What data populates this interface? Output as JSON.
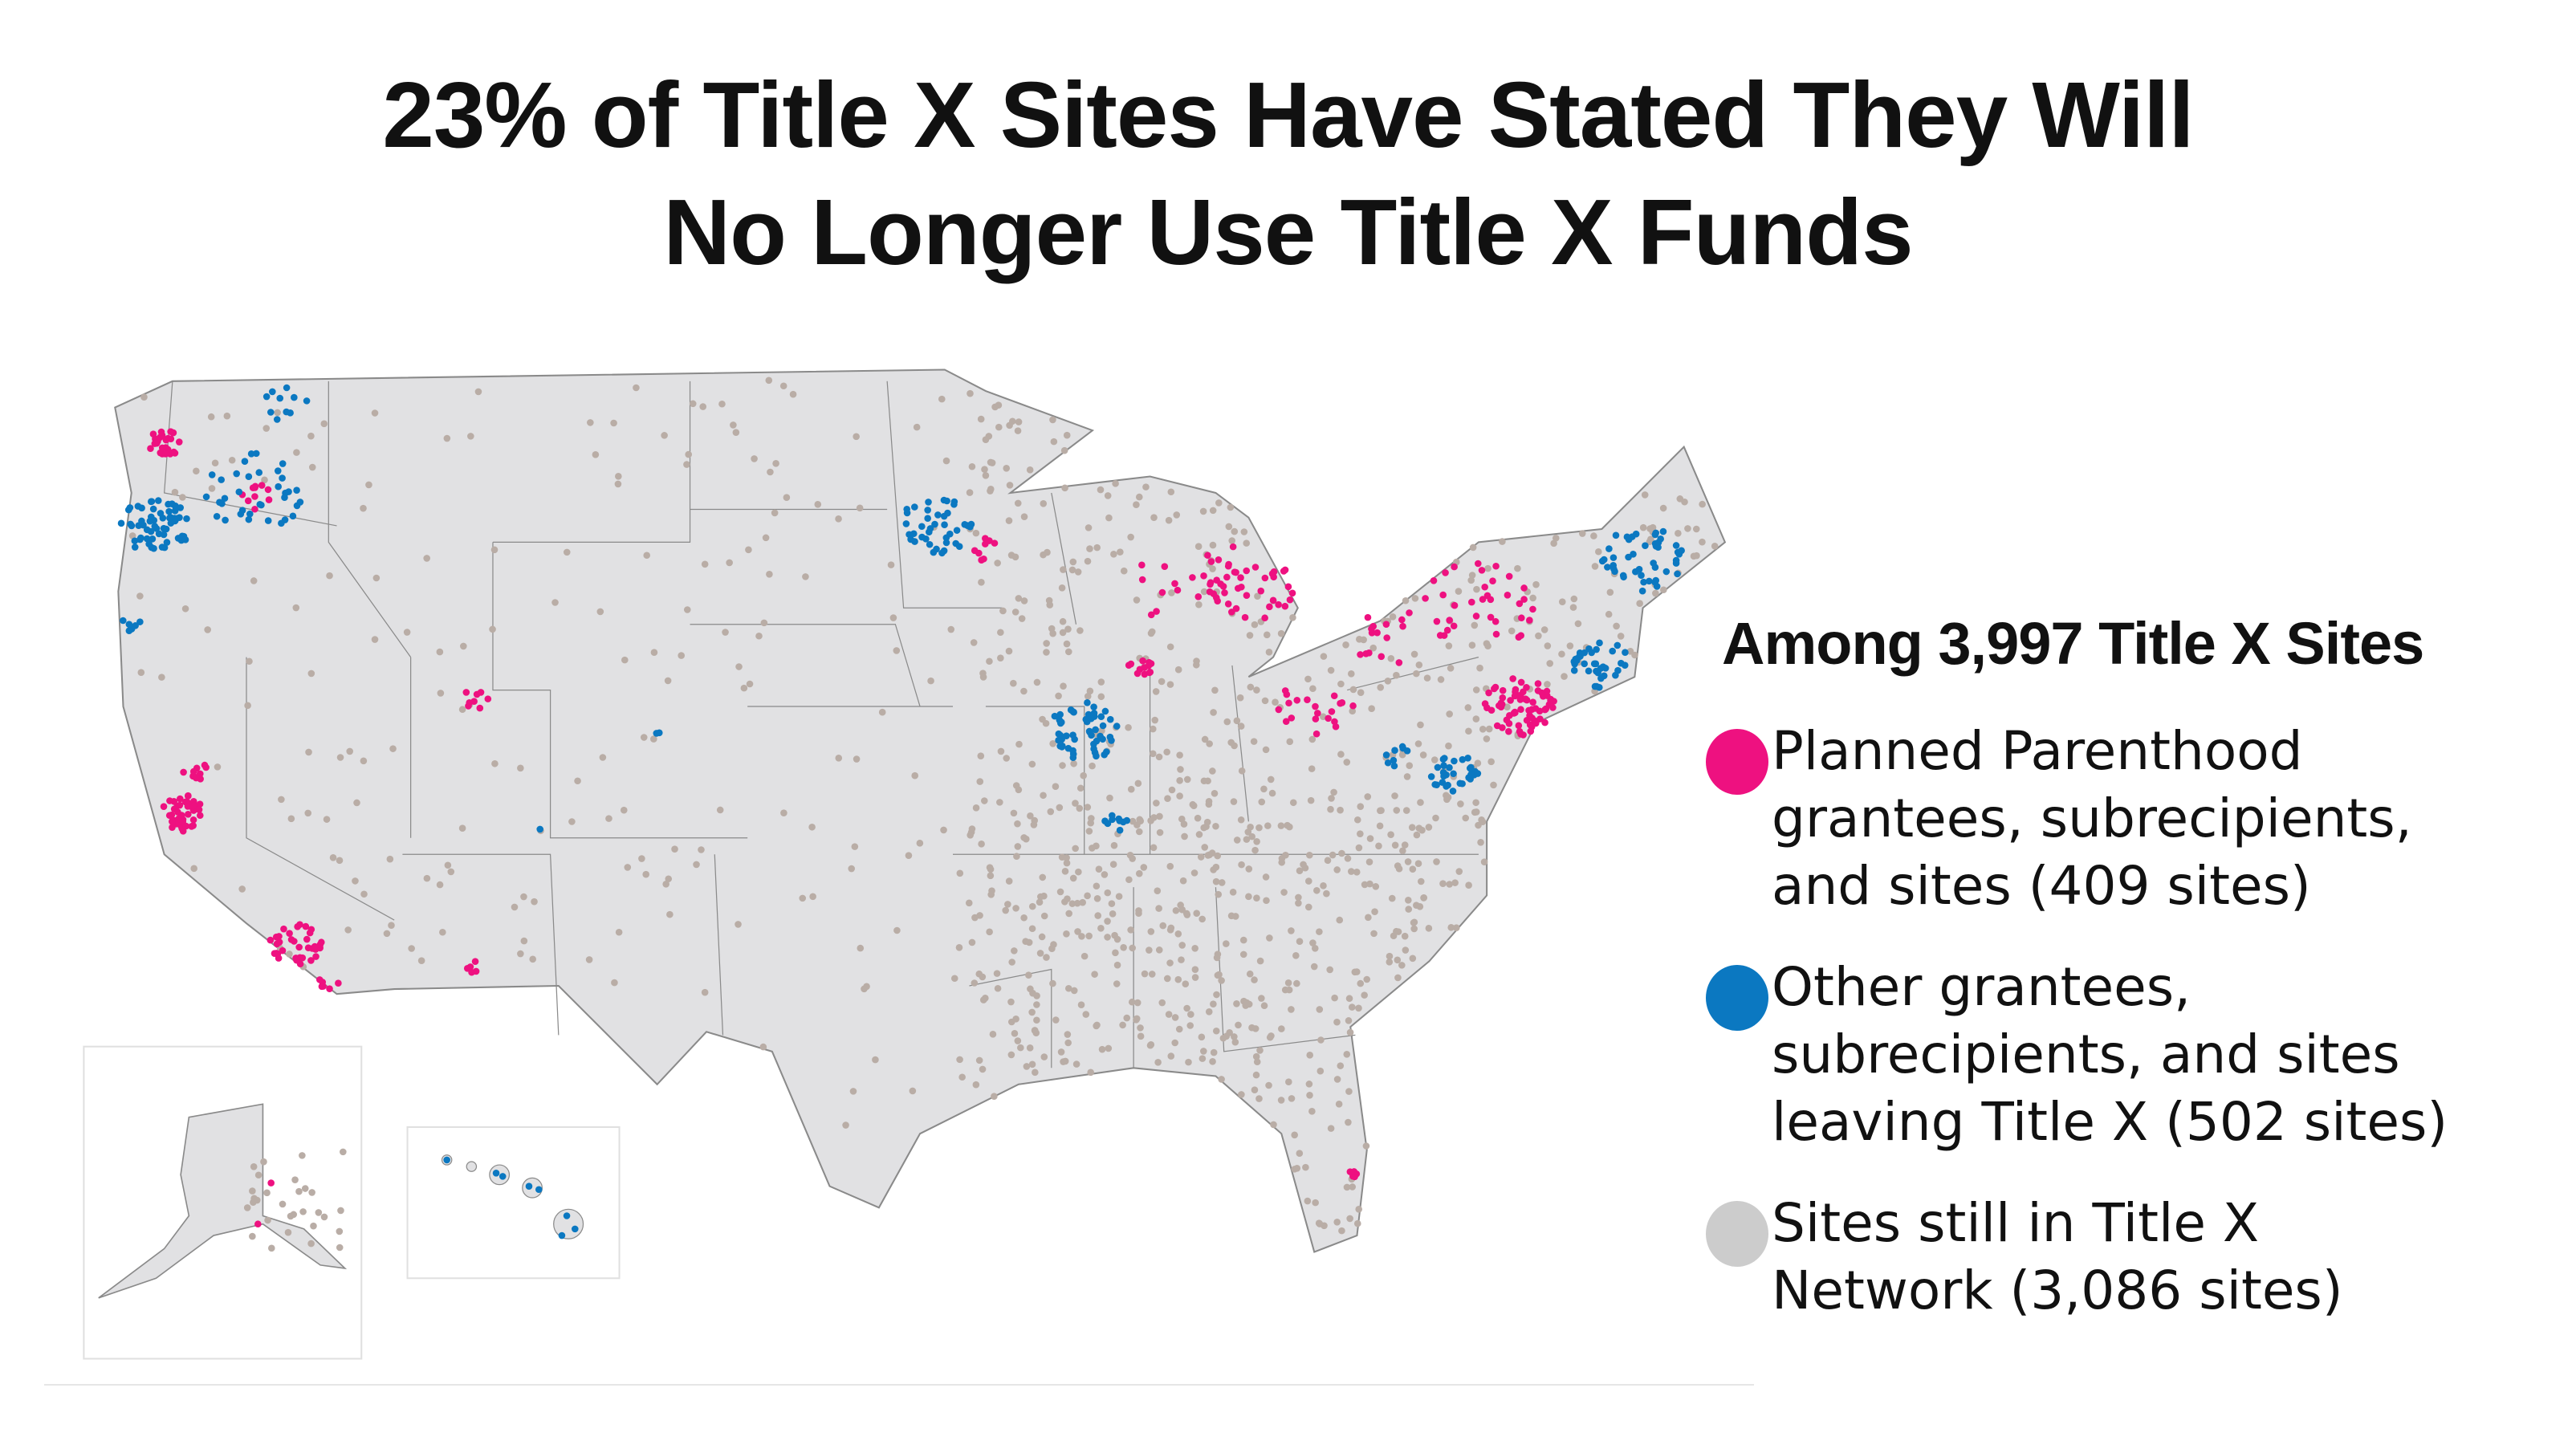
{
  "title": {
    "line1": "23% of Title X Sites Have Stated They Will",
    "line2": "No Longer Use Title X Funds"
  },
  "legend": {
    "title": "Among 3,997 Title X Sites",
    "items": [
      {
        "lines": [
          "Planned Parenthood",
          "grantees, subrecipients,",
          "and sites (409 sites)"
        ],
        "color": "#ee1180"
      },
      {
        "lines": [
          "Other grantees,",
          "subrecipients, and sites",
          "leaving Title X (502 sites)"
        ],
        "color": "#0b78c1"
      },
      {
        "lines": [
          "Sites still in Title X",
          "Network (3,086 sites)"
        ],
        "color": "#cccccc"
      }
    ]
  },
  "map": {
    "land_color": "#e1e1e3",
    "border_color": "#8a8a8a",
    "remaining_dot_color": "#b9ada6",
    "insets": [
      "alaska",
      "hawaii"
    ]
  }
}
